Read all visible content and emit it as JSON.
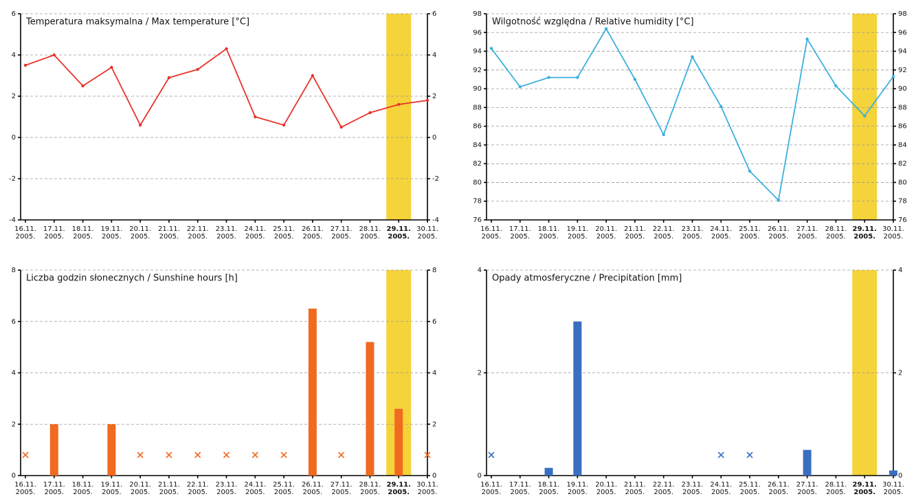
{
  "chart_data": [
    {
      "type": "line",
      "title": "Temperatura maksymalna / Max temperature [°C]",
      "color": "#e8322a",
      "highlight_color": "#f5d33a",
      "highlight": 13,
      "grid": true,
      "categories": [
        [
          "16.11.",
          "2005."
        ],
        [
          "17.11.",
          "2005."
        ],
        [
          "18.11.",
          "2005."
        ],
        [
          "19.11.",
          "2005."
        ],
        [
          "20.11.",
          "2005."
        ],
        [
          "21.11.",
          "2005."
        ],
        [
          "22.11.",
          "2005."
        ],
        [
          "23.11.",
          "2005."
        ],
        [
          "24.11.",
          "2005."
        ],
        [
          "25.11.",
          "2005."
        ],
        [
          "26.11.",
          "2005."
        ],
        [
          "27.11.",
          "2005."
        ],
        [
          "28.11.",
          "2005."
        ],
        [
          "29.11.",
          "2005."
        ],
        [
          "30.11.",
          "2005."
        ]
      ],
      "values": [
        3.5,
        4.0,
        2.5,
        3.4,
        0.6,
        2.9,
        3.3,
        4.3,
        1.0,
        0.6,
        3.0,
        0.5,
        1.2,
        1.6,
        1.8
      ],
      "ylim": [
        -4,
        6
      ],
      "yticks": [
        -4,
        -2,
        0,
        2,
        4,
        6
      ]
    },
    {
      "type": "line",
      "title": "Wilgotność względna / Relative humidity [°C]",
      "color": "#3ab0dd",
      "highlight_color": "#f5d33a",
      "highlight": 13,
      "grid": true,
      "categories": [
        [
          "16.11.",
          "2005."
        ],
        [
          "17.11.",
          "2005."
        ],
        [
          "18.11.",
          "2005."
        ],
        [
          "19.11.",
          "2005."
        ],
        [
          "20.11.",
          "2005."
        ],
        [
          "21.11.",
          "2005."
        ],
        [
          "22.11.",
          "2005."
        ],
        [
          "23.11.",
          "2005."
        ],
        [
          "24.11.",
          "2005."
        ],
        [
          "25.11.",
          "2005."
        ],
        [
          "26.11.",
          "2005."
        ],
        [
          "27.11.",
          "2005."
        ],
        [
          "28.11.",
          "2005."
        ],
        [
          "29.11.",
          "2005."
        ],
        [
          "30.11.",
          "2005."
        ]
      ],
      "values": [
        94.3,
        90.2,
        91.2,
        91.2,
        96.4,
        91.0,
        85.1,
        93.4,
        88.1,
        81.2,
        78.1,
        95.3,
        90.3,
        87.1,
        91.3
      ],
      "ylim": [
        76,
        98
      ],
      "yticks": [
        76,
        78,
        80,
        82,
        84,
        86,
        88,
        90,
        92,
        94,
        96,
        98
      ]
    },
    {
      "type": "bar",
      "title": "Liczba godzin słonecznych / Sunshine hours [h]",
      "color": "#f06a20",
      "highlight_color": "#f5d33a",
      "highlight": 13,
      "grid": true,
      "categories": [
        [
          "16.11.",
          "2005."
        ],
        [
          "17.11.",
          "2005."
        ],
        [
          "18.11.",
          "2005."
        ],
        [
          "19.11.",
          "2005."
        ],
        [
          "20.11.",
          "2005."
        ],
        [
          "21.11.",
          "2005."
        ],
        [
          "22.11.",
          "2005."
        ],
        [
          "23.11.",
          "2005."
        ],
        [
          "24.11.",
          "2005."
        ],
        [
          "25.11.",
          "2005."
        ],
        [
          "26.11.",
          "2005."
        ],
        [
          "27.11.",
          "2005."
        ],
        [
          "28.11.",
          "2005."
        ],
        [
          "29.11.",
          "2005."
        ],
        [
          "30.11.",
          "2005."
        ]
      ],
      "values": [
        null,
        2.0,
        0,
        2.0,
        null,
        null,
        null,
        null,
        null,
        null,
        6.5,
        null,
        5.2,
        2.6,
        null
      ],
      "ylim": [
        0,
        8
      ],
      "yticks": [
        0,
        2,
        4,
        6,
        8
      ]
    },
    {
      "type": "bar",
      "title": "Opady atmosferyczne / Precipitation [mm]",
      "color": "#3a6fc0",
      "highlight_color": "#f5d33a",
      "highlight": 13,
      "grid": true,
      "categories": [
        [
          "16.11.",
          "2005."
        ],
        [
          "17.11.",
          "2005."
        ],
        [
          "18.11.",
          "2005."
        ],
        [
          "19.11.",
          "2005."
        ],
        [
          "20.11.",
          "2005."
        ],
        [
          "21.11.",
          "2005."
        ],
        [
          "22.11.",
          "2005."
        ],
        [
          "23.11.",
          "2005."
        ],
        [
          "24.11.",
          "2005."
        ],
        [
          "25.11.",
          "2005."
        ],
        [
          "26.11.",
          "2005."
        ],
        [
          "27.11.",
          "2005."
        ],
        [
          "28.11.",
          "2005."
        ],
        [
          "29.11.",
          "2005."
        ],
        [
          "30.11.",
          "2005."
        ]
      ],
      "values": [
        null,
        0,
        0.15,
        3.0,
        0,
        0,
        0,
        0,
        null,
        null,
        0,
        0.5,
        0,
        0,
        0.1
      ],
      "ylim": [
        0,
        4
      ],
      "yticks": [
        0,
        2,
        4
      ]
    }
  ]
}
